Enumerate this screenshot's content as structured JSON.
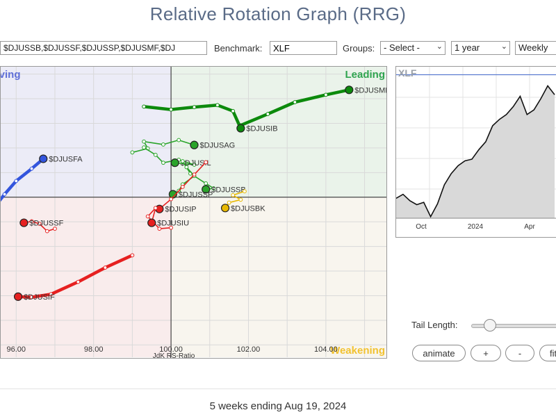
{
  "page": {
    "title": "Relative Rotation Graph (RRG)",
    "footer": "5 weeks ending Aug 19, 2024"
  },
  "controls": {
    "symbols_value": "$DJUSSB,$DJUSSF,$DJUSSP,$DJUSMF,$DJ",
    "benchmark_label": "Benchmark:",
    "benchmark_value": "XLF",
    "groups_label": "Groups:",
    "groups_value": "- Select -",
    "period_value": "1 year",
    "frequency_value": "Weekly",
    "tail_length_label": "Tail Length:",
    "tail_length_fraction": 0.2,
    "buttons": {
      "animate": "animate",
      "plus": "+",
      "minus": "-",
      "fit": "fit"
    }
  },
  "chart_data": [
    {
      "type": "scatter",
      "variant": "relative-rotation-graph",
      "xlabel": "JdK RS-Ratio",
      "ylabel": "",
      "xlim": [
        95.6,
        105.6
      ],
      "ylim": [
        96.75,
        102.65
      ],
      "center": [
        100,
        100
      ],
      "x_ticks": [
        "96.00",
        "98.00",
        "100.00",
        "102.00",
        "104.00"
      ],
      "grid": true,
      "quadrants": [
        {
          "name": "Leading",
          "label": "Leading",
          "color": "#2fa44f",
          "fill": "#eaf3ea"
        },
        {
          "name": "Weakening",
          "label": "Weakening",
          "color": "#f2c230",
          "fill": "#f8f5ee"
        },
        {
          "name": "Lagging",
          "label": "",
          "color": "#e03030",
          "fill": "#f9ecec"
        },
        {
          "name": "Improving",
          "label": "Improving",
          "color": "#5f6fd8",
          "fill": "#ececf7"
        }
      ],
      "series": [
        {
          "name": "$DJUSMF",
          "color": "#0c8a0c",
          "style": "thick",
          "x": [
            101.8,
            102.5,
            103.2,
            104.0,
            104.6
          ],
          "y": [
            101.46,
            101.69,
            101.93,
            102.08,
            102.18
          ]
        },
        {
          "name": "$DJUSIB",
          "color": "#0c8a0c",
          "style": "thick",
          "x": [
            99.3,
            100.0,
            100.6,
            101.2,
            101.6,
            101.8
          ],
          "y": [
            101.84,
            101.78,
            101.83,
            101.87,
            101.75,
            101.4
          ]
        },
        {
          "name": "$DJUSAG",
          "color": "#2aa42a",
          "style": "thin",
          "x": [
            99.0,
            99.4,
            99.3,
            99.8,
            100.2,
            100.6
          ],
          "y": [
            100.91,
            100.99,
            101.13,
            101.07,
            101.16,
            101.06
          ]
        },
        {
          "name": "$DJUSIL",
          "color": "#2aa42a",
          "style": "thin",
          "x": [
            99.3,
            99.6,
            99.8,
            100.2,
            100.6,
            100.1
          ],
          "y": [
            101.01,
            100.86,
            100.7,
            100.76,
            100.66,
            100.7
          ]
        },
        {
          "name": "$DJUSSB",
          "color": "#2aa42a",
          "style": "thin",
          "x": [
            100.3,
            100.5,
            100.9,
            101.1,
            100.9
          ],
          "y": [
            100.73,
            100.48,
            100.28,
            100.18,
            100.16
          ]
        },
        {
          "name": "$DJUSSP",
          "color": "#2aa42a",
          "style": "thin",
          "x": [
            100.4,
            100.6,
            100.3,
            100.2,
            100.05
          ],
          "y": [
            100.61,
            100.43,
            100.26,
            100.13,
            100.06
          ]
        },
        {
          "name": "$DJUSBK",
          "color": "#e8b800",
          "style": "thin",
          "x": [
            101.9,
            101.6,
            101.8,
            101.5,
            101.4
          ],
          "y": [
            100.12,
            100.04,
            99.95,
            99.89,
            99.78
          ]
        },
        {
          "name": "$DJUSIP",
          "color": "#e62020",
          "style": "thin",
          "x": [
            100.9,
            100.6,
            100.3,
            100.0,
            99.7
          ],
          "y": [
            100.71,
            100.46,
            100.21,
            99.96,
            99.76
          ]
        },
        {
          "name": "$DJUSIU",
          "color": "#e62020",
          "style": "thin",
          "x": [
            100.0,
            99.7,
            99.4,
            99.6,
            99.5
          ],
          "y": [
            99.38,
            99.36,
            99.61,
            99.78,
            99.48
          ]
        },
        {
          "name": "$DJUSSF",
          "color": "#e62020",
          "style": "thin",
          "x": [
            97.0,
            96.8,
            96.6,
            96.4,
            96.2
          ],
          "y": [
            99.36,
            99.31,
            99.46,
            99.51,
            99.48
          ]
        },
        {
          "name": "$DJUSIF",
          "color": "#e62020",
          "style": "thick",
          "x": [
            99.0,
            98.3,
            97.6,
            96.9,
            96.4,
            96.05
          ],
          "y": [
            98.82,
            98.57,
            98.28,
            98.03,
            97.97,
            97.98
          ]
        },
        {
          "name": "$DJUSFA",
          "color": "#3355dd",
          "style": "thick",
          "x": [
            95.3,
            95.7,
            96.0,
            96.4,
            96.7
          ],
          "y": [
            99.66,
            100.06,
            100.33,
            100.58,
            100.78
          ]
        }
      ]
    },
    {
      "type": "area",
      "title": "XLF",
      "x_tick_labels": [
        "Oct",
        "2024",
        "Apr"
      ],
      "values": [
        37.5,
        38.0,
        37.2,
        36.7,
        37.0,
        35.2,
        36.8,
        39.2,
        40.6,
        41.6,
        42.2,
        42.4,
        43.6,
        44.6,
        46.6,
        47.4,
        48.0,
        49.0,
        50.3,
        48.0,
        48.6,
        50.0,
        51.6,
        50.5
      ],
      "ylim": [
        35,
        54
      ],
      "reference_value": 53.0
    }
  ]
}
